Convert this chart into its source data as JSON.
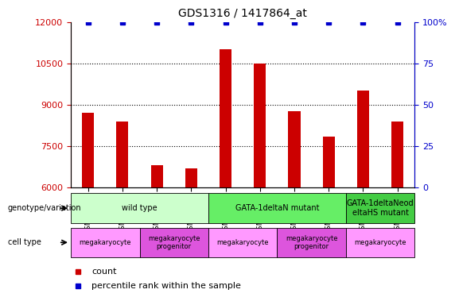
{
  "title": "GDS1316 / 1417864_at",
  "samples": [
    "GSM45786",
    "GSM45787",
    "GSM45790",
    "GSM45791",
    "GSM45788",
    "GSM45789",
    "GSM45792",
    "GSM45793",
    "GSM45794",
    "GSM45795"
  ],
  "counts": [
    8700,
    8400,
    6800,
    6700,
    11000,
    10500,
    8750,
    7850,
    9500,
    8400
  ],
  "percentile_ranks": [
    100,
    100,
    100,
    100,
    100,
    100,
    100,
    100,
    100,
    100
  ],
  "ylim_left": [
    6000,
    12000
  ],
  "ylim_right": [
    0,
    100
  ],
  "yticks_left": [
    6000,
    7500,
    9000,
    10500,
    12000
  ],
  "yticks_right": [
    0,
    25,
    50,
    75,
    100
  ],
  "bar_color": "#cc0000",
  "dot_color": "#0000cc",
  "dot_marker": "s",
  "dot_size": 4,
  "bar_width": 0.35,
  "genotype_groups": [
    {
      "label": "wild type",
      "start": 0,
      "end": 4,
      "color": "#ccffcc"
    },
    {
      "label": "GATA-1deltaN mutant",
      "start": 4,
      "end": 8,
      "color": "#66ee66"
    },
    {
      "label": "GATA-1deltaNeod\neltaHS mutant",
      "start": 8,
      "end": 10,
      "color": "#44cc44"
    }
  ],
  "celltype_groups": [
    {
      "label": "megakaryocyte",
      "start": 0,
      "end": 2,
      "color": "#ff99ff"
    },
    {
      "label": "megakaryocyte\nprogenitor",
      "start": 2,
      "end": 4,
      "color": "#dd55dd"
    },
    {
      "label": "megakaryocyte",
      "start": 4,
      "end": 6,
      "color": "#ff99ff"
    },
    {
      "label": "megakaryocyte\nprogenitor",
      "start": 6,
      "end": 8,
      "color": "#dd55dd"
    },
    {
      "label": "megakaryocyte",
      "start": 8,
      "end": 10,
      "color": "#ff99ff"
    }
  ],
  "legend_count_color": "#cc0000",
  "legend_percentile_color": "#0000cc",
  "grid_color": "black",
  "grid_linestyle": "dotted",
  "grid_linewidth": 0.8
}
